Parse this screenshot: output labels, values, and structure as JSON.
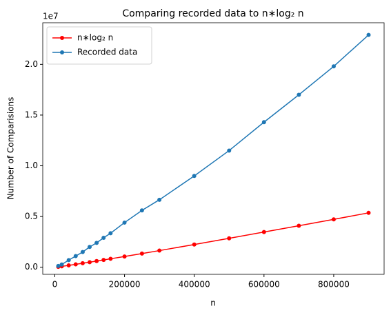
{
  "chart_data": {
    "type": "line",
    "title": "Comparing recorded data to n∗log₂ n",
    "x_label": "n",
    "y_label": "Number of Comparisions",
    "y_offset_label": "1e7",
    "x": [
      10000,
      20000,
      40000,
      60000,
      80000,
      100000,
      120000,
      140000,
      160000,
      200000,
      250000,
      300000,
      400000,
      500000,
      600000,
      700000,
      800000,
      900000
    ],
    "series": [
      {
        "name": "n∗log₂ n",
        "color": "#ff0000",
        "values": [
          40000,
          86000,
          184000,
          287000,
          392000,
          500000,
          610000,
          720000,
          833000,
          1060000,
          1350000,
          1640000,
          2240000,
          2850000,
          3470000,
          4090000,
          4720000,
          5360000
        ]
      },
      {
        "name": "Recorded data",
        "color": "#1f77b4",
        "values": [
          120000,
          270000,
          700000,
          1100000,
          1500000,
          2000000,
          2400000,
          2900000,
          3350000,
          4400000,
          5600000,
          6650000,
          9000000,
          11500000,
          14300000,
          17000000,
          19800000,
          22900000
        ]
      }
    ],
    "xlim": [
      -34500,
      944500
    ],
    "xticks": [
      0,
      200000,
      400000,
      600000,
      800000
    ],
    "ylim": [
      -700000,
      24100000
    ],
    "yticks": [
      {
        "value": 0,
        "label": "0.0"
      },
      {
        "value": 5000000,
        "label": "0.5"
      },
      {
        "value": 10000000,
        "label": "1.0"
      },
      {
        "value": 15000000,
        "label": "1.5"
      },
      {
        "value": 20000000,
        "label": "2.0"
      }
    ],
    "legend": "upper left",
    "grid": false
  }
}
